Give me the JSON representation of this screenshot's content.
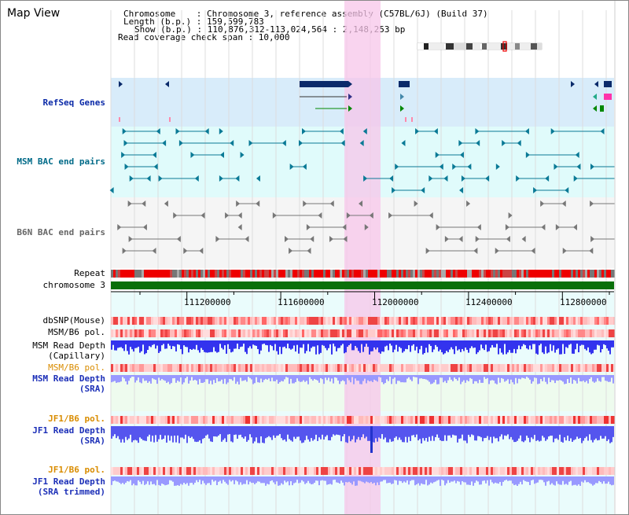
{
  "view_title": "Map View",
  "info": {
    "chromosome": "Chromosome    : Chromosome 3, reference assembly (C57BL/6J) (Build 37)",
    "length": "Length (b.p.) : 159,599,783",
    "show": "Show (b.p.) : 110,876,312-113,024,564 : 2,148,253 bp",
    "read_span": "Read coverage check span : 10,000"
  },
  "track_labels": {
    "refseq": "RefSeq Genes",
    "msm_bac": "MSM BAC end pairs",
    "b6n_bac": "B6N BAC end pairs",
    "repeat": "Repeat",
    "chromosome": "chromosome 3",
    "dbsnp": "dbSNP(Mouse)",
    "msm_b6_pol_1": "MSM/B6 pol.",
    "msm_read_depth_cap_1": "MSM Read Depth",
    "msm_read_depth_cap_2": "(Capillary)",
    "msm_b6_pol_2": "MSM/B6 pol.",
    "msm_read_depth_sra_1": "MSM Read Depth",
    "msm_read_depth_sra_2": "(SRA)",
    "jf1_b6_pol_1": "JF1/B6 pol.",
    "jf1_read_depth_1": "JF1 Read Depth",
    "jf1_read_depth_2": "(SRA)",
    "jf1_b6_pol_2": "JF1/B6 pol.",
    "jf1_trim_1": "JF1 Read Depth",
    "jf1_trim_2": "(SRA trimmed)"
  },
  "axis_ticks": [
    "111200000",
    "111600000",
    "112000000",
    "112400000",
    "112800000"
  ],
  "colors": {
    "refseq_bg": "#d8ecfa",
    "msm_bg": "#e0fbfb",
    "b6n_bg": "#f5f5f5",
    "sra_bg": "#eefbee",
    "highlight": "#f7c6ea",
    "chromosome_bar": "#0a700a",
    "navy": "#0b2aa8",
    "teal": "#006a88"
  }
}
